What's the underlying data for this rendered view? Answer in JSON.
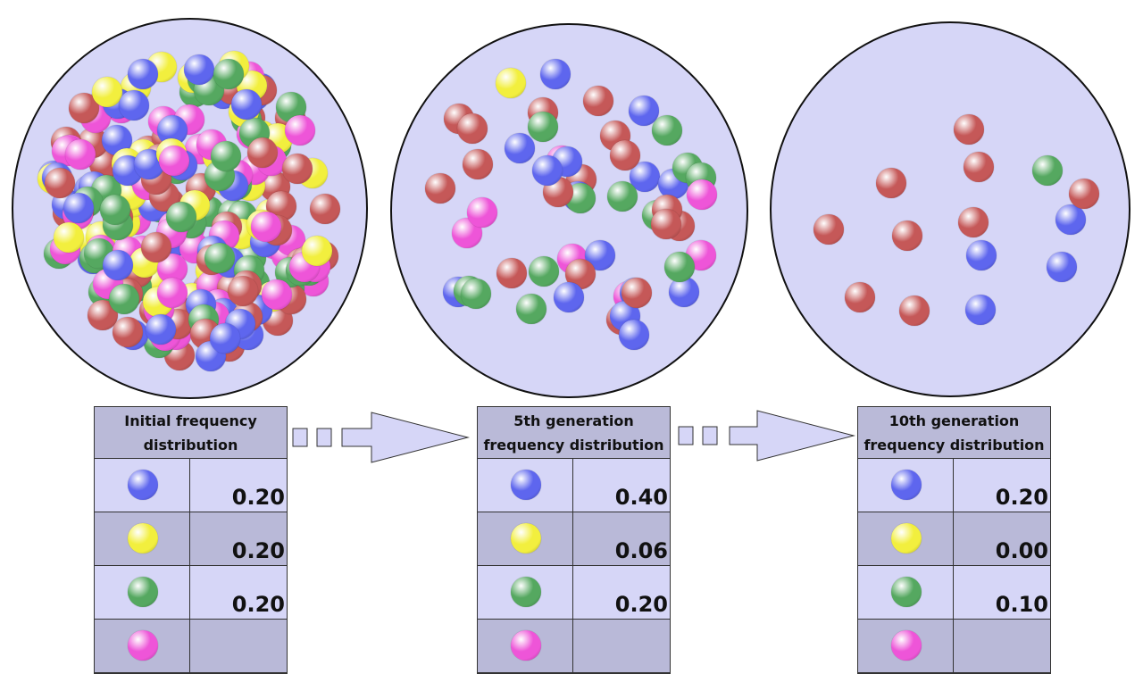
{
  "colors": {
    "blue": "#5e66ee",
    "yellow": "#f2ef3e",
    "green": "#55a860",
    "pink": "#ee55d8",
    "red": "#c55858",
    "pool_fill": "#d6d6f7",
    "header_fill": "#babad8"
  },
  "stages": [
    {
      "title": "Initial frequency distribution",
      "rows": [
        {
          "color": "blue",
          "value": "0.20"
        },
        {
          "color": "yellow",
          "value": "0.20"
        },
        {
          "color": "green",
          "value": "0.20"
        },
        {
          "color": "pink",
          "value": ""
        }
      ]
    },
    {
      "title": "5th generation frequency distribution",
      "rows": [
        {
          "color": "blue",
          "value": "0.40"
        },
        {
          "color": "yellow",
          "value": "0.06"
        },
        {
          "color": "green",
          "value": "0.20"
        },
        {
          "color": "pink",
          "value": ""
        }
      ]
    },
    {
      "title": "10th generation frequency distribution",
      "rows": [
        {
          "color": "blue",
          "value": "0.20"
        },
        {
          "color": "yellow",
          "value": "0.00"
        },
        {
          "color": "green",
          "value": "0.10"
        },
        {
          "color": "pink",
          "value": ""
        }
      ]
    }
  ],
  "arrows": [
    {
      "icon": "dashed-arrow-right-icon"
    },
    {
      "icon": "dashed-arrow-right-icon"
    }
  ]
}
